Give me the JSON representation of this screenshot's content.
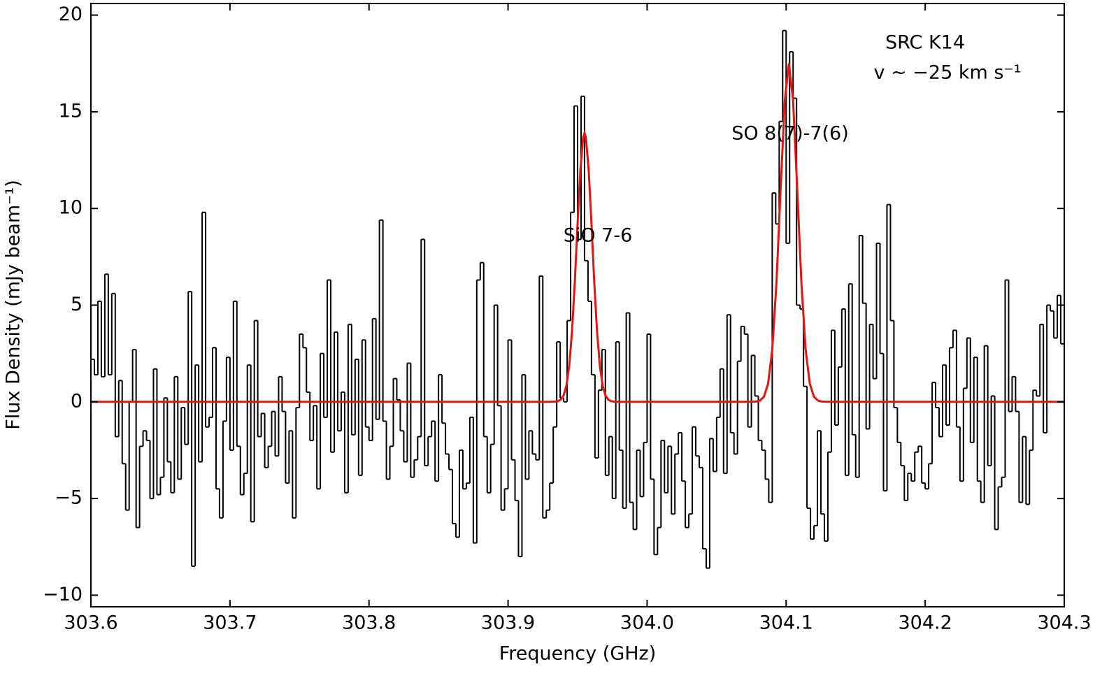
{
  "chart_data": {
    "type": "step",
    "xlabel": "Frequency (GHz)",
    "ylabel": "Flux Density (mJy beam⁻¹)",
    "annotations": [
      "SRC K14",
      "v ~ −25 km s⁻¹",
      "SiO 7-6",
      "SO 8(7)-7(6)"
    ],
    "xlim": [
      303.6,
      304.3
    ],
    "ylim": [
      -10.6,
      20.6
    ],
    "xticks": [
      303.6,
      303.7,
      303.8,
      303.9,
      {
        "value": 304,
        "label": "304.0"
      },
      304.1,
      304.2,
      304.3
    ],
    "yticks": [
      {
        "value": -10,
        "label": "−10"
      },
      {
        "value": -5,
        "label": "−5"
      },
      0,
      5,
      10,
      15,
      20
    ],
    "series": [
      {
        "color": "#000000",
        "bins": [
          303.6,
          303.6025,
          303.605,
          303.6075,
          303.61,
          303.6125,
          303.615,
          303.6175,
          303.62,
          303.6225,
          303.625,
          303.6275,
          303.63,
          303.6325,
          303.635,
          303.6375,
          303.64,
          303.6425,
          303.645,
          303.6475,
          303.65,
          303.6525,
          303.655,
          303.6575,
          303.66,
          303.6625,
          303.665,
          303.6675,
          303.67,
          303.6725,
          303.675,
          303.6775,
          303.68,
          303.6825,
          303.685,
          303.6875,
          303.69,
          303.6925,
          303.695,
          303.6975,
          303.7,
          303.7025,
          303.705,
          303.7075,
          303.71,
          303.7125,
          303.715,
          303.7175,
          303.72,
          303.7225,
          303.725,
          303.7275,
          303.73,
          303.7325,
          303.735,
          303.7375,
          303.74,
          303.7425,
          303.745,
          303.7475,
          303.75,
          303.7525,
          303.755,
          303.7575,
          303.76,
          303.7625,
          303.765,
          303.7675,
          303.77,
          303.7725,
          303.775,
          303.7775,
          303.78,
          303.7825,
          303.785,
          303.7875,
          303.79,
          303.7925,
          303.795,
          303.7975,
          303.8,
          303.8025,
          303.805,
          303.8075,
          303.81,
          303.8125,
          303.815,
          303.8175,
          303.82,
          303.8225,
          303.825,
          303.8275,
          303.83,
          303.8325,
          303.835,
          303.8375,
          303.84,
          303.8425,
          303.845,
          303.8475,
          303.85,
          303.8525,
          303.855,
          303.8575,
          303.86,
          303.8625,
          303.865,
          303.8675,
          303.87,
          303.8725,
          303.875,
          303.8775,
          303.88,
          303.8825,
          303.885,
          303.8875,
          303.89,
          303.8925,
          303.895,
          303.8975,
          303.9,
          303.9025,
          303.905,
          303.9075,
          303.91,
          303.9125,
          303.915,
          303.9175,
          303.92,
          303.9225,
          303.925,
          303.9275,
          303.93,
          303.9325,
          303.935,
          303.9375,
          303.94,
          303.9425,
          303.945,
          303.9475,
          303.95,
          303.9525,
          303.955,
          303.9575,
          303.96,
          303.9625,
          303.965,
          303.9675,
          303.97,
          303.9725,
          303.975,
          303.9775,
          303.98,
          303.9825,
          303.985,
          303.9875,
          303.99,
          303.9925,
          303.995,
          303.9975,
          304.0,
          304.0025,
          304.005,
          304.0075,
          304.01,
          304.0125,
          304.015,
          304.0175,
          304.02,
          304.0225,
          304.025,
          304.0275,
          304.03,
          304.0325,
          304.035,
          304.0375,
          304.04,
          304.0425,
          304.045,
          304.0475,
          304.05,
          304.0525,
          304.055,
          304.0575,
          304.06,
          304.0625,
          304.065,
          304.0675,
          304.07,
          304.0725,
          304.075,
          304.0775,
          304.08,
          304.0825,
          304.085,
          304.0875,
          304.09,
          304.0925,
          304.095,
          304.0975,
          304.1,
          304.1025,
          304.105,
          304.1075,
          304.11,
          304.1125,
          304.115,
          304.1175,
          304.12,
          304.1225,
          304.125,
          304.1275,
          304.13,
          304.1325,
          304.135,
          304.1375,
          304.14,
          304.1425,
          304.145,
          304.1475,
          304.15,
          304.1525,
          304.155,
          304.1575,
          304.16,
          304.1625,
          304.165,
          304.1675,
          304.17,
          304.1725,
          304.175,
          304.1775,
          304.18,
          304.1825,
          304.185,
          304.1875,
          304.19,
          304.1925,
          304.195,
          304.1975,
          304.2,
          304.2025,
          304.205,
          304.2075,
          304.21,
          304.2125,
          304.215,
          304.2175,
          304.22,
          304.2225,
          304.225,
          304.2275,
          304.23,
          304.2325,
          304.235,
          304.2375,
          304.24,
          304.2425,
          304.245,
          304.2475,
          304.25,
          304.2525,
          304.255,
          304.2575,
          304.26,
          304.2625,
          304.265,
          304.2675,
          304.27,
          304.2725,
          304.275,
          304.2775,
          304.28,
          304.2825,
          304.285,
          304.2875,
          304.29,
          304.2925,
          304.295,
          304.2975,
          304.3
        ],
        "values": [
          2.2,
          1.4,
          5.2,
          1.3,
          6.6,
          1.4,
          5.6,
          -1.8,
          1.1,
          -3.2,
          -5.6,
          0,
          2.7,
          -6.5,
          -2.3,
          -1.5,
          -2.0,
          -5.0,
          1.7,
          -4.8,
          -3.9,
          0.2,
          -3.1,
          -4.7,
          1.3,
          -4.0,
          -0.3,
          -2.2,
          5.7,
          -8.5,
          1.9,
          -3.1,
          9.8,
          -1.3,
          -0.8,
          2.8,
          -4.5,
          -6.0,
          -1.0,
          2.3,
          -2.5,
          5.2,
          -2.3,
          -4.8,
          -3.7,
          1.9,
          -6.2,
          4.2,
          -1.8,
          -0.6,
          -3.4,
          -2.3,
          -0.5,
          -2.8,
          1.3,
          -0.5,
          -4.2,
          -1.5,
          -6.0,
          -0.3,
          3.5,
          2.8,
          0.5,
          -2.0,
          -0.2,
          -4.5,
          2.5,
          -0.8,
          6.3,
          -2.6,
          3.6,
          -1.5,
          0.5,
          -4.7,
          4.0,
          -1.7,
          2.2,
          -3.8,
          3.2,
          -1.3,
          -2.0,
          4.3,
          -0.9,
          9.4,
          -1.0,
          -4.0,
          -2.3,
          1.2,
          0.1,
          -1.5,
          -3.1,
          2.0,
          -3.9,
          -3.0,
          -1.8,
          8.4,
          -3.3,
          -1.8,
          -1.0,
          -4.1,
          1.4,
          -1.1,
          -2.7,
          -3.5,
          -6.3,
          -7.0,
          -2.5,
          -4.5,
          -4.2,
          -0.8,
          -7.3,
          6.3,
          7.2,
          -1.8,
          -4.7,
          -2.2,
          5.0,
          -0.2,
          -5.6,
          -4.5,
          3.2,
          -3.0,
          -5.1,
          -8.0,
          1.4,
          -4.0,
          -1.5,
          -2.7,
          -3.0,
          6.5,
          -6.0,
          -5.6,
          -4.2,
          -1.3,
          3.1,
          0.2,
          0.0,
          4.2,
          9.8,
          15.3,
          8.4,
          15.8,
          7.3,
          5.2,
          1.4,
          -2.9,
          0.6,
          2.7,
          -3.8,
          -1.8,
          -5.0,
          3.1,
          -2.5,
          -5.5,
          4.6,
          -5.2,
          -6.6,
          -2.5,
          -4.9,
          -2.1,
          3.5,
          -4.0,
          -7.9,
          -6.5,
          -2.0,
          -4.7,
          -2.3,
          -5.8,
          -2.7,
          -1.6,
          -4.1,
          -6.5,
          -5.8,
          -1.3,
          -2.8,
          -3.4,
          -7.6,
          -8.6,
          -1.9,
          -3.6,
          -0.8,
          1.7,
          -3.7,
          4.5,
          -1.6,
          -2.7,
          2.1,
          3.9,
          3.5,
          -1.3,
          2.4,
          0.3,
          -2.0,
          -2.5,
          -4.0,
          -5.2,
          10.8,
          9.2,
          14.5,
          19.2,
          8.2,
          18.1,
          15.7,
          5.0,
          4.8,
          0.8,
          -5.5,
          -7.1,
          -6.4,
          -1.5,
          -5.8,
          -7.2,
          -2.6,
          3.7,
          -1.2,
          1.8,
          4.8,
          -3.8,
          6.1,
          -1.7,
          -3.9,
          8.6,
          5.1,
          -1.4,
          4.0,
          1.2,
          8.2,
          2.5,
          -4.6,
          10.2,
          4.2,
          -0.3,
          -2.1,
          -3.3,
          -5.1,
          -3.7,
          -4.1,
          -2.6,
          -2.3,
          -4.2,
          -4.5,
          -3.2,
          1.0,
          -0.3,
          -1.8,
          1.9,
          -1.2,
          2.8,
          3.7,
          -1.3,
          -4.1,
          0.7,
          3.3,
          -2.1,
          2.3,
          -4.1,
          -5.2,
          2.9,
          -3.3,
          0.3,
          -6.6,
          -4.4,
          -3.9,
          6.3,
          -0.5,
          1.3,
          -0.5,
          -5.2,
          -1.8,
          -5.3,
          -2.5,
          0.6,
          0.3,
          4.0,
          -1.6,
          5.0,
          4.7,
          3.3,
          5.5,
          3.0
        ]
      },
      {
        "color": "#e8130f",
        "x": [
          303.6,
          303.93,
          303.934,
          303.936,
          303.938,
          303.94,
          303.942,
          303.944,
          303.946,
          303.948,
          303.95,
          303.952,
          303.954,
          303.955,
          303.956,
          303.958,
          303.96,
          303.962,
          303.964,
          303.966,
          303.968,
          303.97,
          303.972,
          303.974,
          303.976,
          303.98,
          304.072,
          304.078,
          304.081,
          304.084,
          304.087,
          304.09,
          304.093,
          304.096,
          304.099,
          304.102,
          304.105,
          304.108,
          304.111,
          304.114,
          304.117,
          304.12,
          304.123,
          304.126,
          304.132,
          304.3
        ],
        "values": [
          0,
          0,
          0.01,
          0.04,
          0.12,
          0.34,
          0.85,
          1.88,
          3.64,
          6.18,
          9.2,
          11.98,
          13.67,
          13.9,
          13.67,
          11.98,
          9.2,
          6.18,
          3.64,
          1.88,
          0.85,
          0.34,
          0.12,
          0.04,
          0.01,
          0,
          0,
          0.01,
          0.06,
          0.26,
          0.94,
          2.7,
          6.11,
          10.96,
          15.57,
          17.5,
          15.57,
          10.96,
          6.11,
          2.7,
          0.94,
          0.26,
          0.06,
          0.01,
          0,
          0
        ]
      }
    ]
  }
}
